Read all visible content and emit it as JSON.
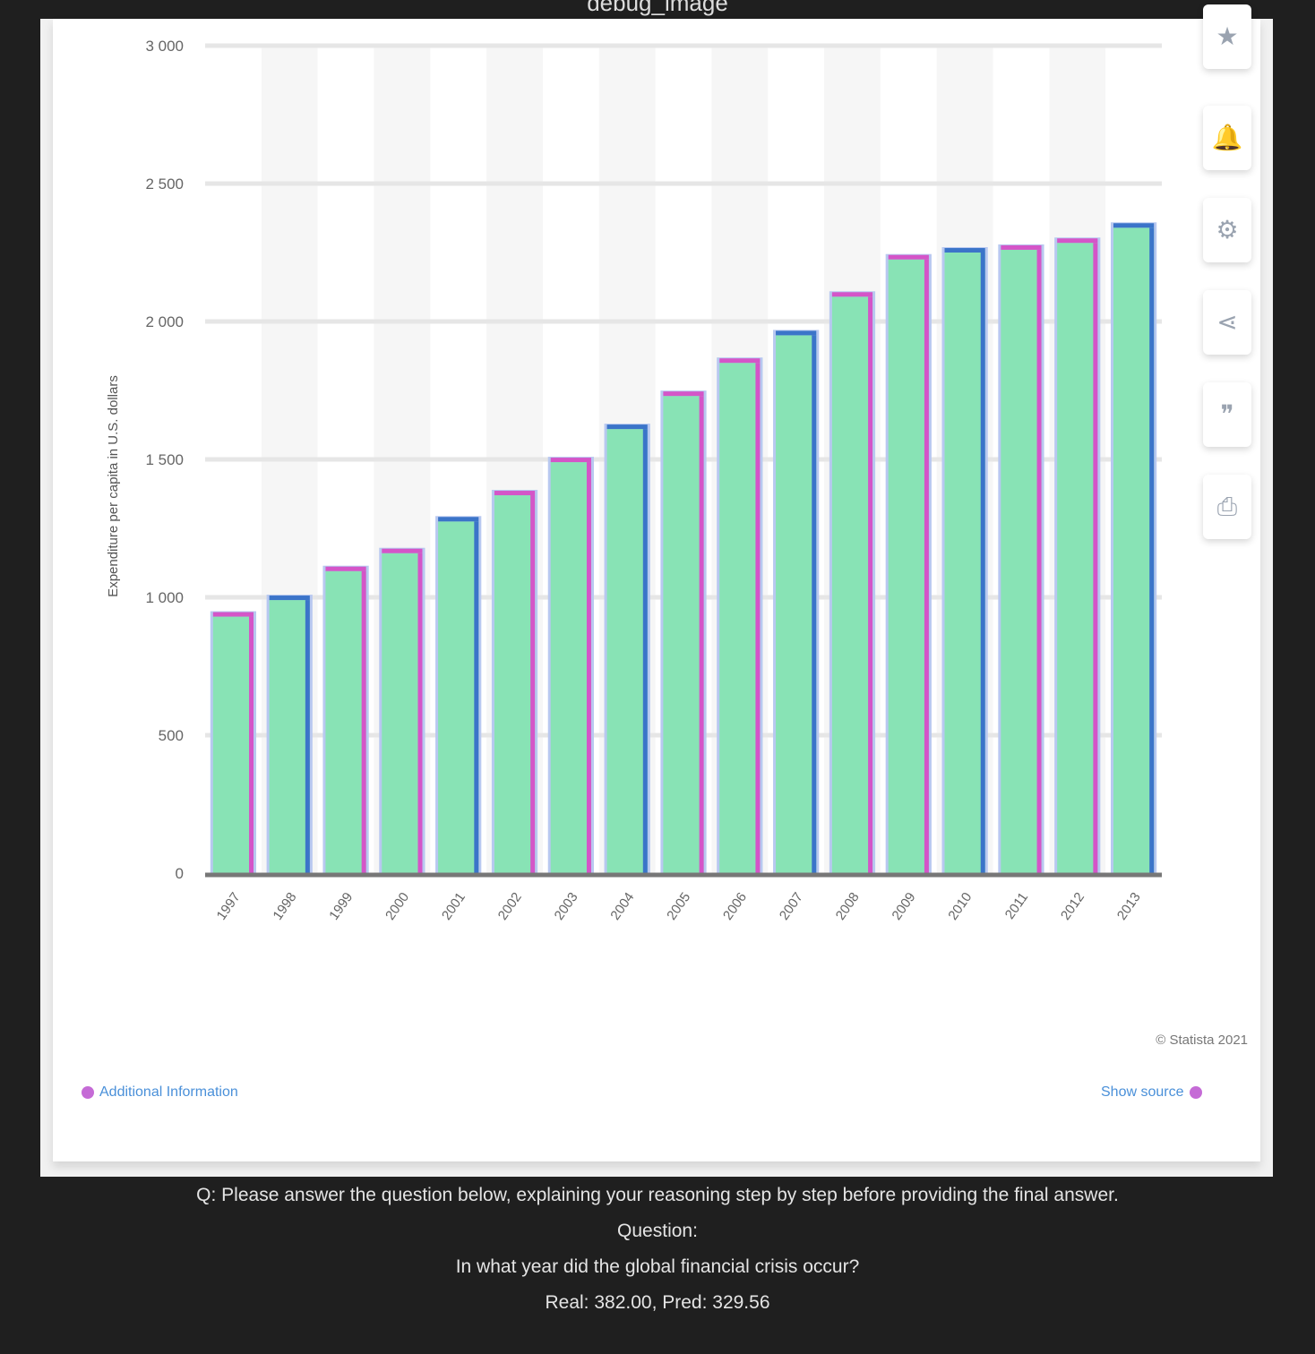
{
  "window": {
    "title": "debug_image"
  },
  "toolbar": {
    "icons": [
      "star-icon",
      "bell-icon",
      "gear-icon",
      "share-icon",
      "quote-icon",
      "print-icon"
    ]
  },
  "footer": {
    "additional_info": "Additional Information",
    "show_source": "Show source",
    "copyright": "© Statista 2021"
  },
  "qa": {
    "prompt": "Q: Please answer the question below, explaining your reasoning step by step before providing the final answer.",
    "question_label": "Question:",
    "question": "In what year did the global financial crisis occur?",
    "result": "Real: 382.00, Pred: 329.56"
  },
  "colors": {
    "bar_fill": "#88e3b5",
    "bar_edge_pink": "#d455c8",
    "bar_edge_blue": "#3b74c9",
    "axis": "#777777",
    "grid": "#e6e6e6",
    "band": "#f6f6f6"
  },
  "chart_data": {
    "type": "bar",
    "title": "",
    "xlabel": "",
    "ylabel": "Expenditure per capita in U.S. dollars",
    "ylim": [
      0,
      3000
    ],
    "yticks": [
      0,
      500,
      1000,
      1500,
      2000,
      2500,
      3000
    ],
    "ytick_labels": [
      "0",
      "500",
      "1 000",
      "1 500",
      "2 000",
      "2 500",
      "3 000"
    ],
    "grid": true,
    "categories": [
      "1997",
      "1998",
      "1999",
      "2000",
      "2001",
      "2002",
      "2003",
      "2004",
      "2005",
      "2006",
      "2007",
      "2008",
      "2009",
      "2010",
      "2011",
      "2012",
      "2013"
    ],
    "series": [
      {
        "values": [
          930,
          990,
          1095,
          1160,
          1275,
          1370,
          1490,
          1610,
          1730,
          1850,
          1950,
          2090,
          2225,
          2250,
          2260,
          2285,
          2340
        ]
      }
    ]
  }
}
